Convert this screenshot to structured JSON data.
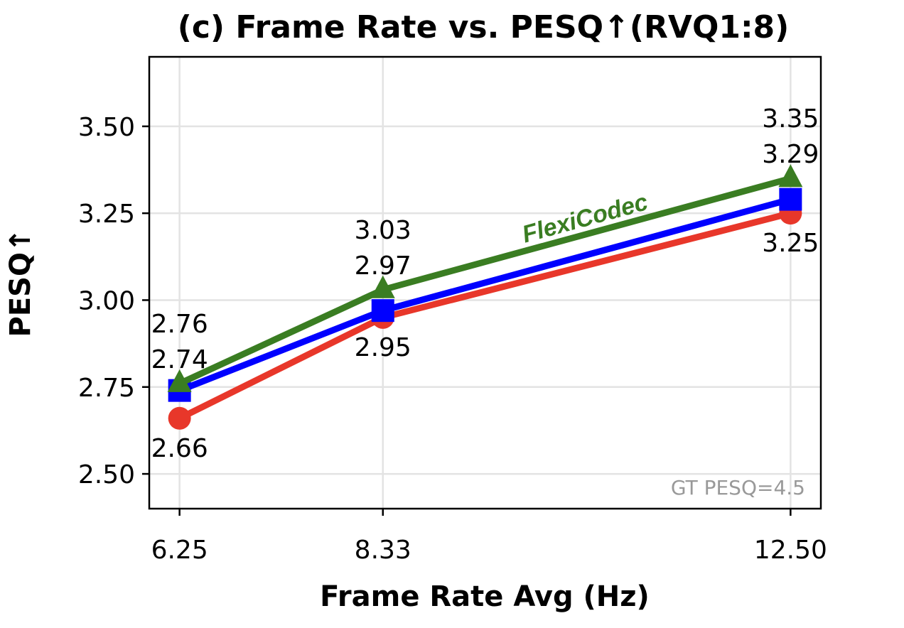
{
  "chart_data": {
    "type": "line",
    "title": "(c) Frame Rate vs. PESQ↑(RVQ1:8)",
    "xlabel": "Frame Rate Avg (Hz)",
    "ylabel": "PESQ↑",
    "x": [
      6.25,
      8.33,
      12.5
    ],
    "x_tick_labels": [
      "6.25",
      "8.33",
      "12.50"
    ],
    "y_ticks": [
      2.5,
      2.75,
      3.0,
      3.25,
      3.5
    ],
    "y_tick_labels": [
      "2.50",
      "2.75",
      "3.00",
      "3.25",
      "3.50"
    ],
    "xlim": [
      5.94,
      12.81
    ],
    "ylim": [
      2.4,
      3.7
    ],
    "grid": true,
    "series": [
      {
        "key": "red",
        "marker": "circle",
        "color": "#e8372a",
        "values": [
          2.66,
          2.95,
          3.25
        ],
        "labels": [
          "2.66",
          "2.95",
          "3.25"
        ],
        "label_position": "below"
      },
      {
        "key": "blue",
        "marker": "square",
        "color": "#0000ff",
        "values": [
          2.74,
          2.97,
          3.29
        ],
        "labels": [
          "2.74",
          "2.97",
          "3.29"
        ],
        "label_position": "above"
      },
      {
        "key": "green",
        "name": "FlexiCodec",
        "marker": "triangle",
        "color": "#3a7d22",
        "values": [
          2.76,
          3.03,
          3.35
        ],
        "labels": [
          "2.76",
          "3.03",
          "3.35"
        ],
        "label_position": "above-top"
      }
    ],
    "annotations": {
      "series_label": "FlexiCodec",
      "note": "GT PESQ=4.5"
    }
  }
}
